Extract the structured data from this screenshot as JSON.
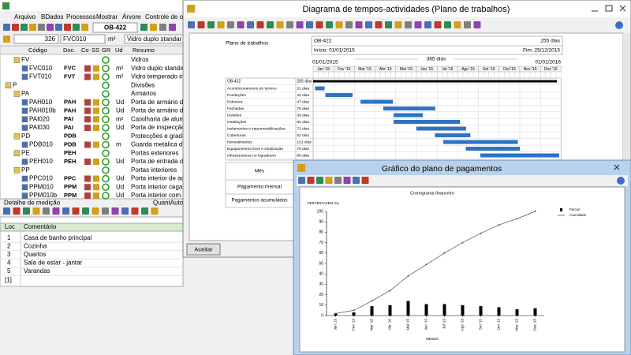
{
  "app": {
    "menu": [
      "Arquivo",
      "BDados",
      "Processos",
      "Mostrar",
      "Árvore",
      "Controle de obi"
    ],
    "project_field": "OB-422",
    "selection": {
      "number": "326",
      "code": "FVC010",
      "unit": "m²",
      "summary": "Vidro duplo standar"
    },
    "tree_headers": [
      "Código",
      "Doc.",
      "Co",
      "SS",
      "GR",
      "Ud",
      "Resumo"
    ],
    "tree_rows": [
      {
        "code": "FV",
        "summary": "Vidros"
      },
      {
        "code": "FVC010",
        "doc": "FVC",
        "unit": "m²",
        "summary": "Vidro duplo standar"
      },
      {
        "code": "FVT010",
        "doc": "FVT",
        "unit": "m²",
        "summary": "Vidro temperado ind"
      },
      {
        "code": "P",
        "summary": "Divisões"
      },
      {
        "code": "PA",
        "summary": "Armários"
      },
      {
        "code": "PAH010",
        "doc": "PAH",
        "unit": "Ud",
        "summary": "Porta de armário de"
      },
      {
        "code": "PAH010b",
        "doc": "PAH",
        "unit": "Ud",
        "summary": "Porta de armário de"
      },
      {
        "code": "PAI020",
        "doc": "PAI",
        "unit": "m²",
        "summary": "Caixilharia de alumí"
      },
      {
        "code": "PAI030",
        "doc": "PAI",
        "unit": "Ud",
        "summary": "Porta de inspecção"
      },
      {
        "code": "PD",
        "doc": "PDB",
        "summary": "Protecções e gradeai"
      },
      {
        "code": "PDB010",
        "doc": "PDB",
        "unit": "m",
        "summary": "Guarda metálica de"
      },
      {
        "code": "PE",
        "doc": "PEH",
        "summary": "Portas exteriores"
      },
      {
        "code": "PEH010",
        "doc": "PEH",
        "unit": "Ud",
        "summary": "Porta de entrada de"
      },
      {
        "code": "PP",
        "summary": "Portas interiores"
      },
      {
        "code": "PPC010",
        "doc": "PPC",
        "unit": "Ud",
        "summary": "Porta interior de aço"
      },
      {
        "code": "PPM010",
        "doc": "PPM",
        "unit": "Ud",
        "summary": "Porta interior cega,"
      },
      {
        "code": "PPM010b",
        "doc": "PPM",
        "unit": "Ud",
        "summary": "Porta interior com vi"
      }
    ],
    "detail": {
      "title": "Detalhe de medição",
      "quant_label": "QuantAuto",
      "headers": [
        "Loc",
        "Comentário"
      ],
      "rows": [
        {
          "loc": "1",
          "comment": "Casa de banho principal"
        },
        {
          "loc": "2",
          "comment": "Cozinha"
        },
        {
          "loc": "3",
          "comment": "Quartos"
        },
        {
          "loc": "4",
          "comment": "Sala de estar - jantar"
        },
        {
          "loc": "5",
          "comment": "Varandas"
        }
      ],
      "new_row": "[1]"
    }
  },
  "gantt_window": {
    "title": "Diagrama de tempos-actividades (Plano de trabalhos)",
    "sheet_title": "Plano de trabalhos",
    "project": "OB-422",
    "project_duration": "255 dias",
    "start": "Início: 01/01/2015",
    "end": "Fim: 25/12/2015",
    "range_start": "01/01/2015",
    "range_length": "365 dias",
    "range_end": "01/01/2016",
    "months": [
      "Jan '15",
      "Fev '15",
      "Mar '15",
      "Abr '15",
      "Mai '15",
      "Jun '15",
      "Jul '15",
      "Ago '15",
      "Set '15",
      "Out '15",
      "Nov '15",
      "Dez '15"
    ],
    "summary_row": {
      "name": "OB-422",
      "duration": "255 dias",
      "start": 0,
      "end": 11.8
    },
    "tasks": [
      {
        "name": "Acondicionamento do terreno",
        "duration": "21 dias",
        "start": 0.1,
        "end": 0.55
      },
      {
        "name": "Fundações",
        "duration": "42 dias",
        "start": 0.6,
        "end": 1.9
      },
      {
        "name": "Estrutura",
        "duration": "47 dias",
        "start": 2.3,
        "end": 3.85
      },
      {
        "name": "Fachadas",
        "duration": "75 dias",
        "start": 3.4,
        "end": 5.9
      },
      {
        "name": "Divisões",
        "duration": "39 dias",
        "start": 3.9,
        "end": 5.3
      },
      {
        "name": "Instalações",
        "duration": "92 dias",
        "start": 3.9,
        "end": 7.1
      },
      {
        "name": "Isolamentos e impermeabilizações",
        "duration": "72 dias",
        "start": 5.0,
        "end": 7.4
      },
      {
        "name": "Coberturas",
        "duration": "52 dias",
        "start": 5.9,
        "end": 7.6
      },
      {
        "name": "Revestimentos",
        "duration": "101 dias",
        "start": 6.3,
        "end": 9.9
      },
      {
        "name": "Equipamentos fixos e sinalização",
        "duration": "79 dias",
        "start": 7.4,
        "end": 10.0
      },
      {
        "name": "Infraestruturas no logradouro",
        "duration": "98 dias",
        "start": 8.1,
        "end": 11.9
      }
    ],
    "payment_rows": [
      "Mês",
      "Pagamento mensal",
      "Pagamentos acumulados"
    ],
    "accept": "Aceitar"
  },
  "payment_window": {
    "title": "Gráfico do plano de pagamentos",
    "chart": {
      "type": "bar",
      "title": "Cronograma financeiro",
      "y_label": "PERCENTAGEM (%)",
      "x_label": "MESES",
      "categories": [
        "Jan '15",
        "Fev '15",
        "Mar '15",
        "Abr '15",
        "Mai '15",
        "Jun '15",
        "Jul '15",
        "Ago '15",
        "Set '15",
        "Out '15",
        "Nov '15",
        "Dez '15"
      ],
      "series": [
        {
          "name": "Parcial",
          "color": "#000000",
          "values": [
            2,
            3,
            9,
            10,
            14,
            11,
            11,
            10,
            9,
            8,
            6,
            7
          ]
        },
        {
          "name": "Acumulado",
          "color": "#555555",
          "type": "line",
          "values": [
            2,
            5,
            14,
            24,
            38,
            49,
            60,
            70,
            79,
            87,
            93,
            100
          ]
        }
      ],
      "ylim": [
        0,
        100
      ],
      "yticks": [
        0,
        10,
        20,
        30,
        40,
        50,
        60,
        70,
        80,
        90,
        100
      ]
    }
  }
}
